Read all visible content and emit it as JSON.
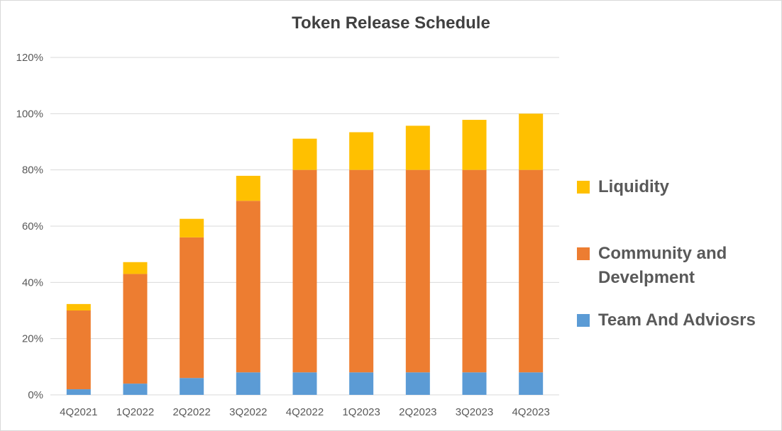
{
  "chart_data": {
    "type": "bar",
    "stacked": true,
    "title": "Token Release Schedule",
    "xlabel": "",
    "ylabel": "",
    "categories": [
      "4Q2021",
      "1Q2022",
      "2Q2022",
      "3Q2022",
      "4Q2022",
      "1Q2023",
      "2Q2023",
      "3Q2023",
      "4Q2023"
    ],
    "series": [
      {
        "name": "Team And Adviosrs",
        "color": "#5b9bd5",
        "values": [
          2,
          4,
          6,
          8,
          8,
          8,
          8,
          8,
          8
        ]
      },
      {
        "name": "Community and Develpment",
        "color": "#ed7d31",
        "values": [
          28,
          39,
          50,
          61,
          72,
          72,
          72,
          72,
          72
        ]
      },
      {
        "name": "Liquidity",
        "color": "#ffc000",
        "values": [
          2.3,
          4.2,
          6.6,
          8.9,
          11.1,
          13.4,
          15.7,
          17.8,
          20
        ]
      }
    ],
    "ylim": [
      0,
      120
    ],
    "yticks": [
      "0%",
      "20%",
      "40%",
      "60%",
      "80%",
      "100%",
      "120%"
    ],
    "ytick_values": [
      0,
      20,
      40,
      60,
      80,
      100,
      120
    ],
    "grid": true,
    "legend_position": "right"
  }
}
